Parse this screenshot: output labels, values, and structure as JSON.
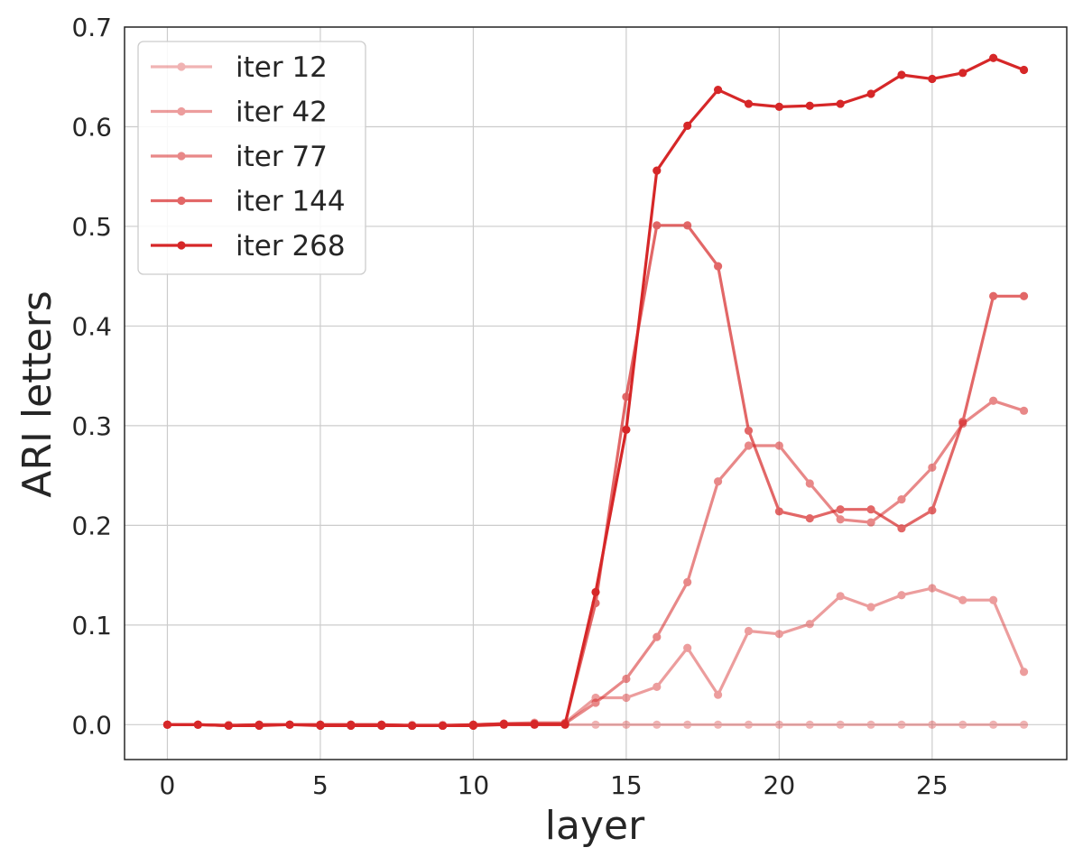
{
  "chart_data": {
    "type": "line",
    "title": "",
    "xlabel": "layer",
    "ylabel": "ARI letters",
    "xlim": [
      -1.4,
      29.4
    ],
    "ylim": [
      -0.035,
      0.7
    ],
    "xticks": [
      0,
      5,
      10,
      15,
      20,
      25
    ],
    "yticks": [
      0.0,
      0.1,
      0.2,
      0.3,
      0.4,
      0.5,
      0.6,
      0.7
    ],
    "xtick_labels": [
      "0",
      "5",
      "10",
      "15",
      "20",
      "25"
    ],
    "ytick_labels": [
      "0.0",
      "0.1",
      "0.2",
      "0.3",
      "0.4",
      "0.5",
      "0.6",
      "0.7"
    ],
    "grid": true,
    "legend_position": "top-left",
    "x": [
      0,
      1,
      2,
      3,
      4,
      5,
      6,
      7,
      8,
      9,
      10,
      11,
      12,
      13,
      14,
      15,
      16,
      17,
      18,
      19,
      20,
      21,
      22,
      23,
      24,
      25,
      26,
      27,
      28
    ],
    "series": [
      {
        "name": "iter 12",
        "color": "#d62728",
        "opacity": 0.35,
        "values": [
          0,
          0,
          0,
          0,
          0,
          0,
          0,
          0,
          0,
          0,
          0,
          0,
          0,
          0,
          0,
          0,
          0,
          0,
          0,
          0,
          0,
          0,
          0,
          0,
          0,
          0,
          0,
          0,
          0
        ]
      },
      {
        "name": "iter 42",
        "color": "#d62728",
        "opacity": 0.45,
        "values": [
          0,
          0,
          -0.001,
          0,
          0,
          0,
          0,
          0,
          -0.001,
          -0.001,
          0,
          0.001,
          0.002,
          0.002,
          0.027,
          0.027,
          0.038,
          0.077,
          0.03,
          0.094,
          0.091,
          0.101,
          0.129,
          0.118,
          0.13,
          0.137,
          0.125,
          0.125,
          0.053
        ]
      },
      {
        "name": "iter 77",
        "color": "#d62728",
        "opacity": 0.55,
        "values": [
          0,
          0,
          -0.001,
          0,
          0,
          0,
          0,
          0,
          -0.001,
          -0.001,
          0,
          0.001,
          0.001,
          0.001,
          0.022,
          0.046,
          0.088,
          0.143,
          0.244,
          0.28,
          0.28,
          0.242,
          0.206,
          0.203,
          0.226,
          0.258,
          0.302,
          0.325,
          0.315
        ]
      },
      {
        "name": "iter 144",
        "color": "#d62728",
        "opacity": 0.7,
        "values": [
          0,
          0,
          -0.001,
          0,
          0,
          0,
          0,
          0,
          -0.001,
          -0.001,
          0,
          0.001,
          0.001,
          0.001,
          0.122,
          0.329,
          0.501,
          0.501,
          0.46,
          0.295,
          0.214,
          0.207,
          0.216,
          0.216,
          0.197,
          0.215,
          0.304,
          0.43,
          0.43
        ]
      },
      {
        "name": "iter 268",
        "color": "#d62728",
        "opacity": 1.0,
        "values": [
          0,
          0,
          -0.001,
          -0.001,
          0,
          -0.001,
          -0.001,
          -0.001,
          -0.001,
          -0.001,
          -0.001,
          0,
          0,
          0,
          0.133,
          0.296,
          0.556,
          0.601,
          0.637,
          0.623,
          0.62,
          0.621,
          0.623,
          0.633,
          0.652,
          0.648,
          0.654,
          0.669,
          0.657
        ]
      }
    ]
  }
}
